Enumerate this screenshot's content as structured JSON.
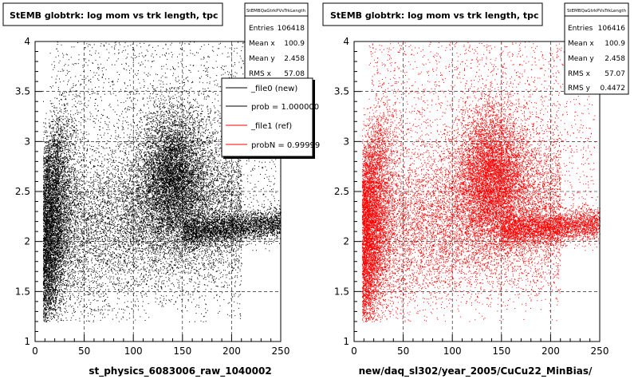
{
  "chart_data": [
    {
      "type": "scatter",
      "title": "StEMB globtrk: log mom vs trk length, tpc",
      "xlabel": "st_physics_6083006_raw_1040002",
      "ylabel": "",
      "xlim": [
        0,
        250
      ],
      "ylim": [
        1,
        4
      ],
      "xticks": [
        "0",
        "50",
        "100",
        "150",
        "200",
        "250"
      ],
      "yticks": [
        "1",
        "1.5",
        "2",
        "2.5",
        "3",
        "3.5",
        "4"
      ],
      "grid": true,
      "marker_color": "#000000",
      "stats": {
        "name": "StEMBQaGtrkPVsTrkLength",
        "rows": [
          {
            "label": "Entries",
            "value": "106418"
          },
          {
            "label": "Mean x",
            "value": "100.9"
          },
          {
            "label": "Mean y",
            "value": "2.458"
          },
          {
            "label": "RMS x",
            "value": "57.08"
          }
        ]
      },
      "legend": {
        "placement": "top-right",
        "entries": [
          {
            "label": "_file0 (new)",
            "color": "#000000"
          },
          {
            "label": "prob = 1.000000",
            "color": "#000000"
          },
          {
            "label": "_file1 (ref)",
            "color": "#ff0000"
          },
          {
            "label": "probN = 0.99999",
            "color": "#ff0000"
          }
        ]
      }
    },
    {
      "type": "scatter",
      "title": "StEMB globtrk: log mom vs trk length, tpc",
      "xlabel": "new/daq_sl302/year_2005/CuCu22_MinBias/",
      "ylabel": "",
      "xlim": [
        0,
        250
      ],
      "ylim": [
        1,
        4
      ],
      "xticks": [
        "0",
        "50",
        "100",
        "150",
        "200",
        "250"
      ],
      "yticks": [
        "1",
        "1.5",
        "2",
        "2.5",
        "3",
        "3.5",
        "4"
      ],
      "grid": true,
      "marker_color": "#ff0000",
      "stats": {
        "name": "StEMBQaGtrkPVsTrkLength",
        "rows": [
          {
            "label": "Entries",
            "value": "106416"
          },
          {
            "label": "Mean x",
            "value": "100.9"
          },
          {
            "label": "Mean y",
            "value": "2.458"
          },
          {
            "label": "RMS x",
            "value": "57.07"
          },
          {
            "label": "RMS y",
            "value": "0.4472"
          }
        ]
      }
    }
  ]
}
